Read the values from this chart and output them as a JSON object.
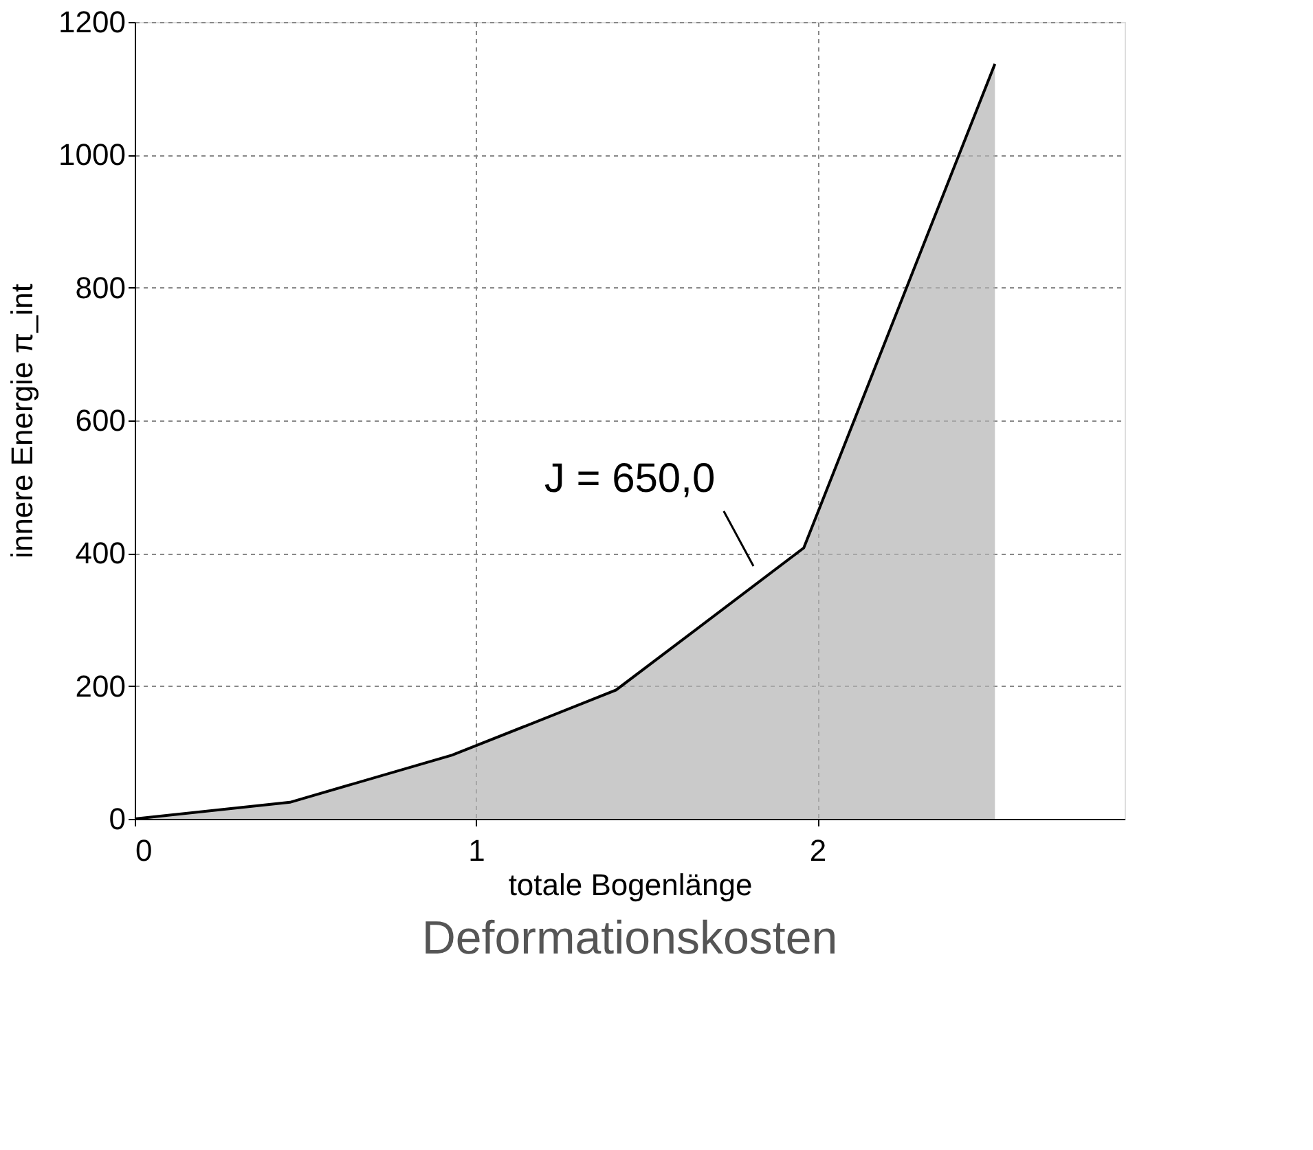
{
  "chart_data": {
    "type": "area",
    "title": "Deformationskosten",
    "xlabel": "totale Bogenlänge",
    "ylabel": "innere Energie π_int",
    "x": [
      0,
      0.455,
      0.93,
      1.41,
      1.96,
      2.52
    ],
    "series": [
      {
        "color": "#b3b3b3",
        "values": [
          0,
          25,
          96,
          194,
          408,
          1137
        ]
      }
    ],
    "xlim": [
      0,
      2.9
    ],
    "xticks": [
      0,
      1,
      2
    ],
    "ylim": [
      0,
      1200
    ],
    "yticks": [
      0,
      200,
      400,
      600,
      800,
      1000,
      1200
    ],
    "grid": true,
    "annotations": [
      "J = 650,0"
    ]
  }
}
